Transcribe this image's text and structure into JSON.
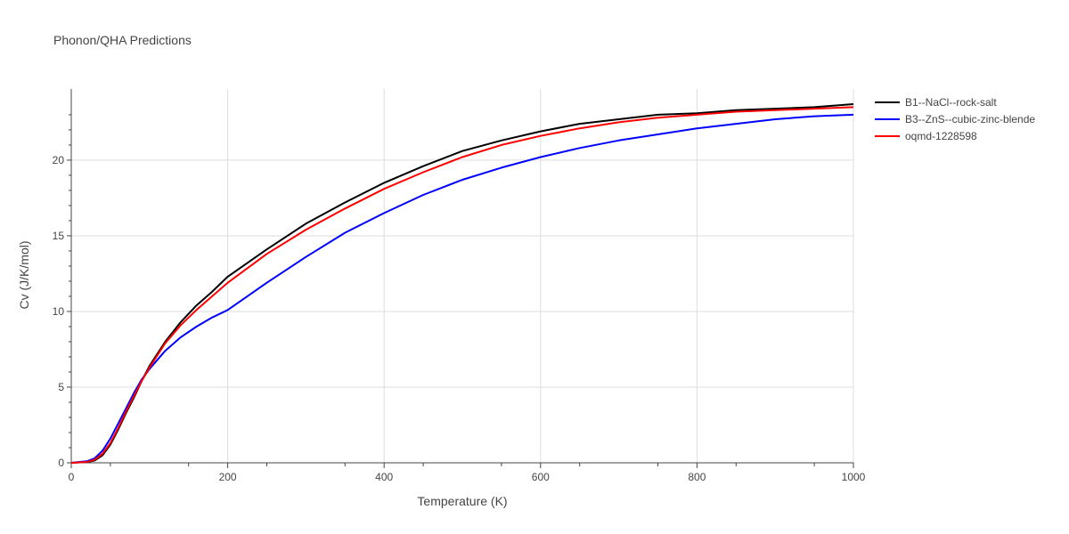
{
  "chart_data": {
    "type": "line",
    "title": "Phonon/QHA Predictions",
    "xlabel": "Temperature (K)",
    "ylabel": "Cv (J/K/mol)",
    "xlim": [
      0,
      1000
    ],
    "ylim": [
      0,
      24.7
    ],
    "x_ticks": [
      0,
      200,
      400,
      600,
      800,
      1000
    ],
    "y_ticks": [
      0,
      5,
      10,
      15,
      20
    ],
    "grid": true,
    "legend_position": "top-right",
    "series": [
      {
        "name": "B1--NaCl--rock-salt",
        "color": "#000000",
        "x": [
          0,
          20,
          30,
          40,
          50,
          60,
          70,
          80,
          90,
          100,
          120,
          140,
          160,
          180,
          200,
          250,
          300,
          350,
          400,
          450,
          500,
          550,
          600,
          650,
          700,
          750,
          800,
          850,
          900,
          950,
          1000
        ],
        "y": [
          0,
          0.05,
          0.15,
          0.5,
          1.2,
          2.2,
          3.3,
          4.3,
          5.4,
          6.4,
          8.0,
          9.3,
          10.4,
          11.3,
          12.3,
          14.1,
          15.8,
          17.2,
          18.5,
          19.6,
          20.6,
          21.3,
          21.9,
          22.4,
          22.7,
          23.0,
          23.1,
          23.3,
          23.4,
          23.5,
          23.7
        ]
      },
      {
        "name": "B3--ZnS--cubic-zinc-blende",
        "color": "#0000ff",
        "x": [
          0,
          20,
          30,
          40,
          50,
          60,
          70,
          80,
          90,
          100,
          120,
          140,
          160,
          180,
          200,
          250,
          300,
          350,
          400,
          450,
          500,
          550,
          600,
          650,
          700,
          750,
          800,
          850,
          900,
          950,
          1000
        ],
        "y": [
          0,
          0.1,
          0.3,
          0.8,
          1.6,
          2.6,
          3.6,
          4.6,
          5.5,
          6.2,
          7.4,
          8.3,
          9.0,
          9.6,
          10.1,
          11.9,
          13.6,
          15.2,
          16.5,
          17.7,
          18.7,
          19.5,
          20.2,
          20.8,
          21.3,
          21.7,
          22.1,
          22.4,
          22.7,
          22.9,
          23.0
        ]
      },
      {
        "name": "oqmd-1228598",
        "color": "#ff0000",
        "x": [
          0,
          20,
          30,
          40,
          50,
          60,
          70,
          80,
          90,
          100,
          120,
          140,
          160,
          180,
          200,
          250,
          300,
          350,
          400,
          450,
          500,
          550,
          600,
          650,
          700,
          750,
          800,
          850,
          900,
          950,
          1000
        ],
        "y": [
          0,
          0.05,
          0.2,
          0.6,
          1.3,
          2.3,
          3.4,
          4.4,
          5.4,
          6.3,
          7.9,
          9.1,
          10.1,
          11.0,
          11.9,
          13.8,
          15.4,
          16.8,
          18.1,
          19.2,
          20.2,
          21.0,
          21.6,
          22.1,
          22.5,
          22.8,
          23.0,
          23.2,
          23.3,
          23.4,
          23.5
        ]
      }
    ]
  }
}
